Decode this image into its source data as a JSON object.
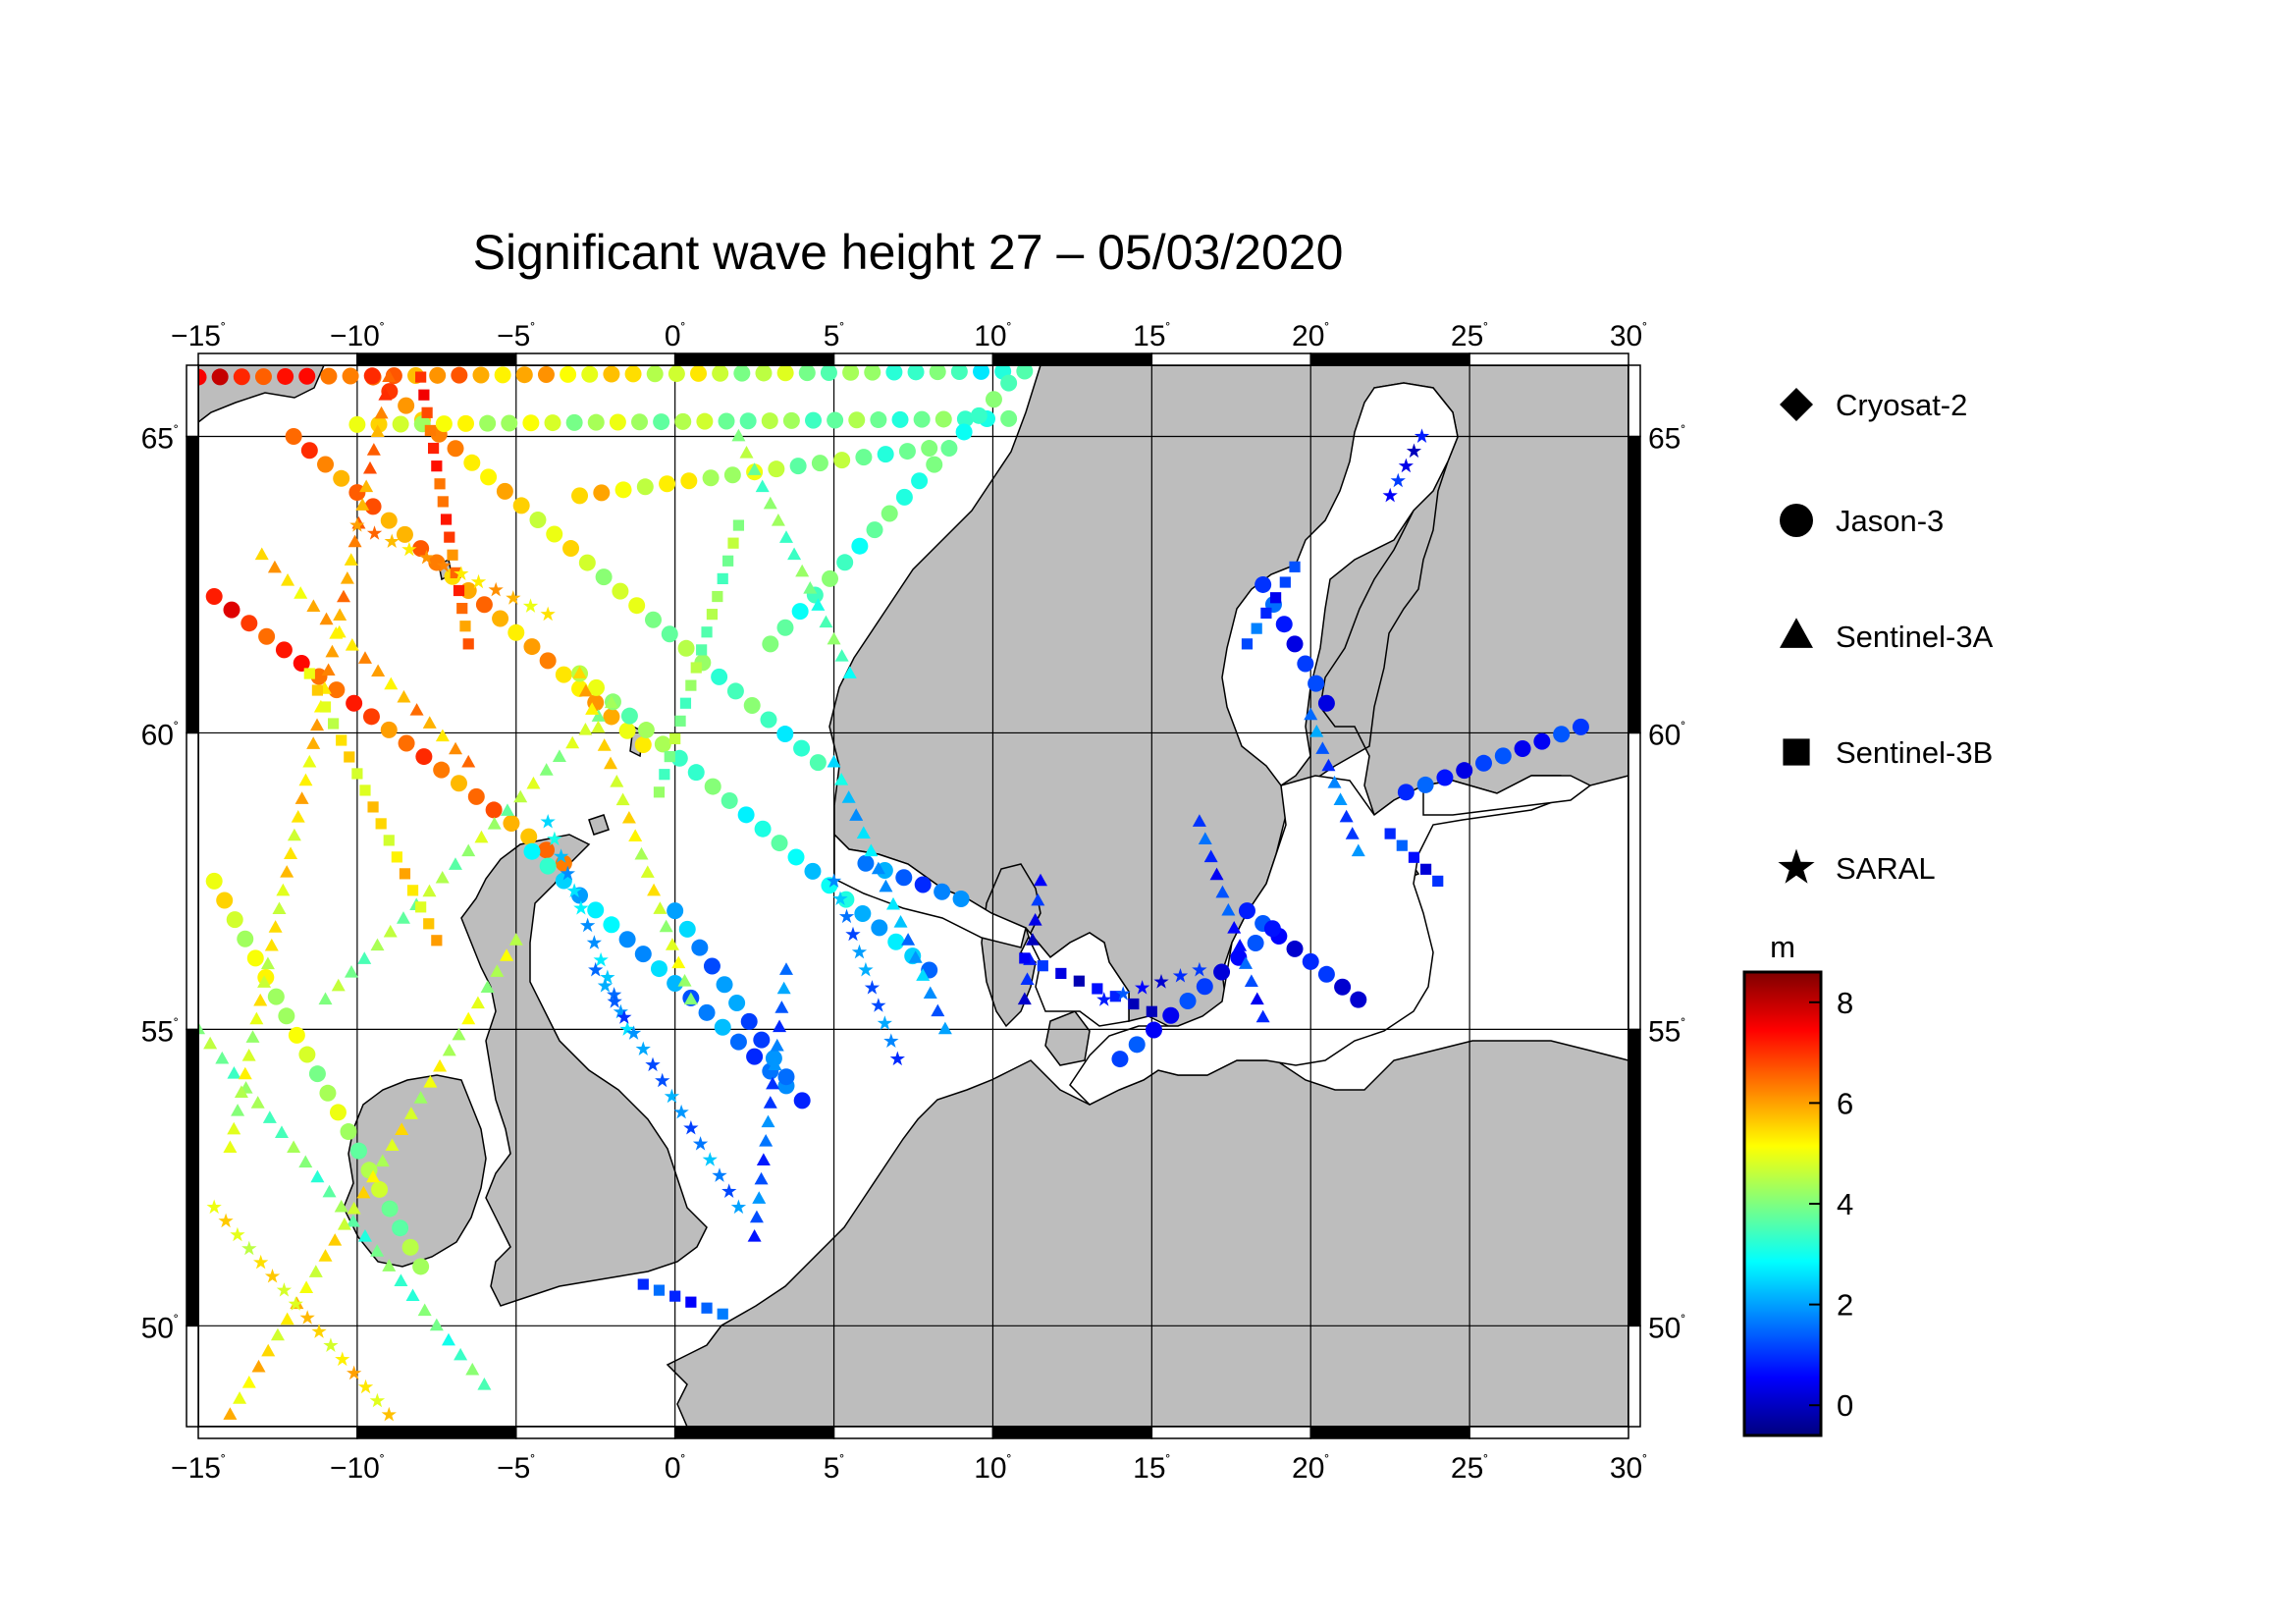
{
  "title": "Significant wave height 27 – 05/03/2020",
  "map": {
    "lon_range": [
      -15,
      30
    ],
    "lat_range": [
      48.3,
      66.2
    ],
    "lon_ticks": [
      -15,
      -10,
      -5,
      0,
      5,
      10,
      15,
      20,
      25,
      30
    ],
    "lat_ticks": [
      50,
      55,
      60,
      65
    ],
    "lon_tick_labels": [
      "−15",
      "−10",
      "−5",
      "0",
      "5",
      "10",
      "15",
      "20",
      "25",
      "30"
    ],
    "lat_tick_labels": [
      "50",
      "55",
      "60",
      "65"
    ],
    "degree_symbol": "˚",
    "land_color": "#bdbdbd",
    "sea_color": "#ffffff",
    "grid": true
  },
  "legend": {
    "items": [
      {
        "label": "Cryosat-2",
        "symbol": "diamond-icon"
      },
      {
        "label": "Jason-3",
        "symbol": "circle-icon"
      },
      {
        "label": "Sentinel-3A",
        "symbol": "triangle-icon"
      },
      {
        "label": "Sentinel-3B",
        "symbol": "square-icon"
      },
      {
        "label": "SARAL",
        "symbol": "star-icon"
      }
    ]
  },
  "colorbar": {
    "unit": "m",
    "range": [
      -0.6,
      8.6
    ],
    "ticks": [
      0,
      2,
      4,
      6,
      8
    ],
    "tick_labels": [
      "0",
      "2",
      "4",
      "6",
      "8"
    ],
    "colormap": [
      "#00007f",
      "#0000ff",
      "#007fff",
      "#00ffff",
      "#7fff7f",
      "#ffff00",
      "#ff7f00",
      "#ff0000",
      "#7f0000"
    ]
  },
  "tracks": [
    {
      "sat": "Jason-3",
      "start": [
        -14.5,
        62.3
      ],
      "end": [
        -3.5,
        57.8
      ],
      "hs": [
        7.2,
        6.0
      ]
    },
    {
      "sat": "Jason-3",
      "start": [
        -12.0,
        65.0
      ],
      "end": [
        -1.0,
        59.8
      ],
      "hs": [
        6.5,
        5.5
      ]
    },
    {
      "sat": "Jason-3",
      "start": [
        -9.5,
        66.0
      ],
      "end": [
        4.5,
        59.5
      ],
      "hs": [
        6.5,
        3.0
      ]
    },
    {
      "sat": "Jason-3",
      "start": [
        -3.0,
        61.0
      ],
      "end": [
        8.0,
        56.0
      ],
      "hs": [
        4.5,
        2.0
      ]
    },
    {
      "sat": "Jason-3",
      "start": [
        -4.5,
        58.0
      ],
      "end": [
        4.0,
        53.8
      ],
      "hs": [
        2.8,
        1.2
      ]
    },
    {
      "sat": "Jason-3",
      "start": [
        0.0,
        57.0
      ],
      "end": [
        3.5,
        54.2
      ],
      "hs": [
        2.0,
        1.3
      ]
    },
    {
      "sat": "Jason-3",
      "start": [
        -14.5,
        57.5
      ],
      "end": [
        -8.0,
        51.0
      ],
      "hs": [
        5.0,
        4.0
      ]
    },
    {
      "sat": "Jason-3",
      "start": [
        6.0,
        57.8
      ],
      "end": [
        9.0,
        57.2
      ],
      "hs": [
        1.6,
        1.4
      ]
    },
    {
      "sat": "Jason-3",
      "start": [
        18.0,
        57.0
      ],
      "end": [
        21.5,
        55.5
      ],
      "hs": [
        0.8,
        0.5
      ]
    },
    {
      "sat": "Jason-3",
      "start": [
        18.8,
        56.7
      ],
      "end": [
        14.0,
        54.5
      ],
      "hs": [
        0.7,
        0.9
      ]
    },
    {
      "sat": "Jason-3",
      "start": [
        18.5,
        62.5
      ],
      "end": [
        20.5,
        60.5
      ],
      "hs": [
        1.0,
        0.7
      ]
    },
    {
      "sat": "Jason-3",
      "start": [
        23.0,
        59.0
      ],
      "end": [
        28.5,
        60.1
      ],
      "hs": [
        0.9,
        0.8
      ]
    },
    {
      "sat": "Jason-3",
      "start": [
        -15.0,
        66.0
      ],
      "end": [
        11.0,
        66.1
      ],
      "hs": [
        7.5,
        3.0
      ]
    },
    {
      "sat": "Jason-3",
      "start": [
        -10.0,
        65.2
      ],
      "end": [
        10.5,
        65.3
      ],
      "hs": [
        5.0,
        3.5
      ]
    },
    {
      "sat": "Jason-3",
      "start": [
        -3.0,
        64.0
      ],
      "end": [
        8.0,
        64.8
      ],
      "hs": [
        5.5,
        3.5
      ]
    },
    {
      "sat": "Jason-3",
      "start": [
        10.5,
        65.9
      ],
      "end": [
        3.0,
        61.5
      ],
      "hs": [
        3.5,
        3.5
      ]
    },
    {
      "sat": "Sentinel-3A",
      "start": [
        -15.0,
        55.0
      ],
      "end": [
        -6.0,
        49.0
      ],
      "hs": [
        4.0,
        3.5
      ]
    },
    {
      "sat": "Sentinel-3A",
      "start": [
        -9.0,
        66.0
      ],
      "end": [
        -14.0,
        53.0
      ],
      "hs": [
        6.5,
        4.5
      ]
    },
    {
      "sat": "Sentinel-3A",
      "start": [
        -5.0,
        56.5
      ],
      "end": [
        -14.0,
        48.5
      ],
      "hs": [
        4.5,
        5.5
      ]
    },
    {
      "sat": "Sentinel-3A",
      "start": [
        -11.0,
        55.5
      ],
      "end": [
        -2.0,
        60.5
      ],
      "hs": [
        4.0,
        4.5
      ]
    },
    {
      "sat": "Sentinel-3A",
      "start": [
        -3.0,
        61.0
      ],
      "end": [
        0.5,
        55.5
      ],
      "hs": [
        5.5,
        4.5
      ]
    },
    {
      "sat": "Sentinel-3A",
      "start": [
        3.5,
        56.0
      ],
      "end": [
        2.5,
        51.5
      ],
      "hs": [
        1.5,
        1.3
      ]
    },
    {
      "sat": "Sentinel-3A",
      "start": [
        5.0,
        59.5
      ],
      "end": [
        8.5,
        55.0
      ],
      "hs": [
        2.5,
        1.8
      ]
    },
    {
      "sat": "Sentinel-3A",
      "start": [
        11.5,
        57.5
      ],
      "end": [
        11.0,
        55.5
      ],
      "hs": [
        0.5,
        0.5
      ]
    },
    {
      "sat": "Sentinel-3A",
      "start": [
        16.5,
        58.5
      ],
      "end": [
        18.5,
        55.2
      ],
      "hs": [
        1.0,
        1.0
      ]
    },
    {
      "sat": "Sentinel-3A",
      "start": [
        20.0,
        60.3
      ],
      "end": [
        21.5,
        58.0
      ],
      "hs": [
        1.5,
        1.4
      ]
    },
    {
      "sat": "Sentinel-3A",
      "start": [
        -13.0,
        63.0
      ],
      "end": [
        -6.5,
        59.5
      ],
      "hs": [
        5.5,
        6.0
      ]
    },
    {
      "sat": "Sentinel-3A",
      "start": [
        2.0,
        65.0
      ],
      "end": [
        5.5,
        61.0
      ],
      "hs": [
        4.0,
        3.5
      ]
    },
    {
      "sat": "Sentinel-3B",
      "start": [
        -11.5,
        61.0
      ],
      "end": [
        -7.5,
        56.5
      ],
      "hs": [
        5.0,
        5.5
      ]
    },
    {
      "sat": "Sentinel-3B",
      "start": [
        2.0,
        63.5
      ],
      "end": [
        -0.5,
        59.0
      ],
      "hs": [
        4.0,
        4.0
      ]
    },
    {
      "sat": "Sentinel-3B",
      "start": [
        -8.0,
        66.0
      ],
      "end": [
        -6.5,
        61.5
      ],
      "hs": [
        7.0,
        6.5
      ]
    },
    {
      "sat": "Sentinel-3B",
      "start": [
        11.0,
        56.2
      ],
      "end": [
        15.0,
        55.3
      ],
      "hs": [
        0.5,
        0.3
      ]
    },
    {
      "sat": "Sentinel-3B",
      "start": [
        18.0,
        61.5
      ],
      "end": [
        19.5,
        62.8
      ],
      "hs": [
        1.2,
        0.8
      ]
    },
    {
      "sat": "Sentinel-3B",
      "start": [
        22.5,
        58.3
      ],
      "end": [
        24.0,
        57.5
      ],
      "hs": [
        0.9,
        0.7
      ]
    },
    {
      "sat": "Sentinel-3B",
      "start": [
        -1.0,
        50.7
      ],
      "end": [
        1.5,
        50.2
      ],
      "hs": [
        0.9,
        1.2
      ]
    },
    {
      "sat": "SARAL",
      "start": [
        -4.0,
        58.5
      ],
      "end": [
        -1.5,
        55.0
      ],
      "hs": [
        2.5,
        2.0
      ]
    },
    {
      "sat": "SARAL",
      "start": [
        -2.5,
        56.0
      ],
      "end": [
        2.0,
        52.0
      ],
      "hs": [
        1.5,
        1.8
      ]
    },
    {
      "sat": "SARAL",
      "start": [
        5.0,
        57.5
      ],
      "end": [
        7.0,
        54.5
      ],
      "hs": [
        1.8,
        1.5
      ]
    },
    {
      "sat": "SARAL",
      "start": [
        13.5,
        55.5
      ],
      "end": [
        16.5,
        56.0
      ],
      "hs": [
        0.8,
        0.6
      ]
    },
    {
      "sat": "SARAL",
      "start": [
        -10.0,
        63.5
      ],
      "end": [
        -4.0,
        62.0
      ],
      "hs": [
        6.0,
        5.5
      ]
    },
    {
      "sat": "SARAL",
      "start": [
        22.5,
        64.0
      ],
      "end": [
        23.5,
        65.0
      ],
      "hs": [
        0.5,
        0.5
      ]
    },
    {
      "sat": "SARAL",
      "start": [
        -14.5,
        52.0
      ],
      "end": [
        -9.0,
        48.5
      ],
      "hs": [
        5.0,
        5.5
      ]
    }
  ]
}
